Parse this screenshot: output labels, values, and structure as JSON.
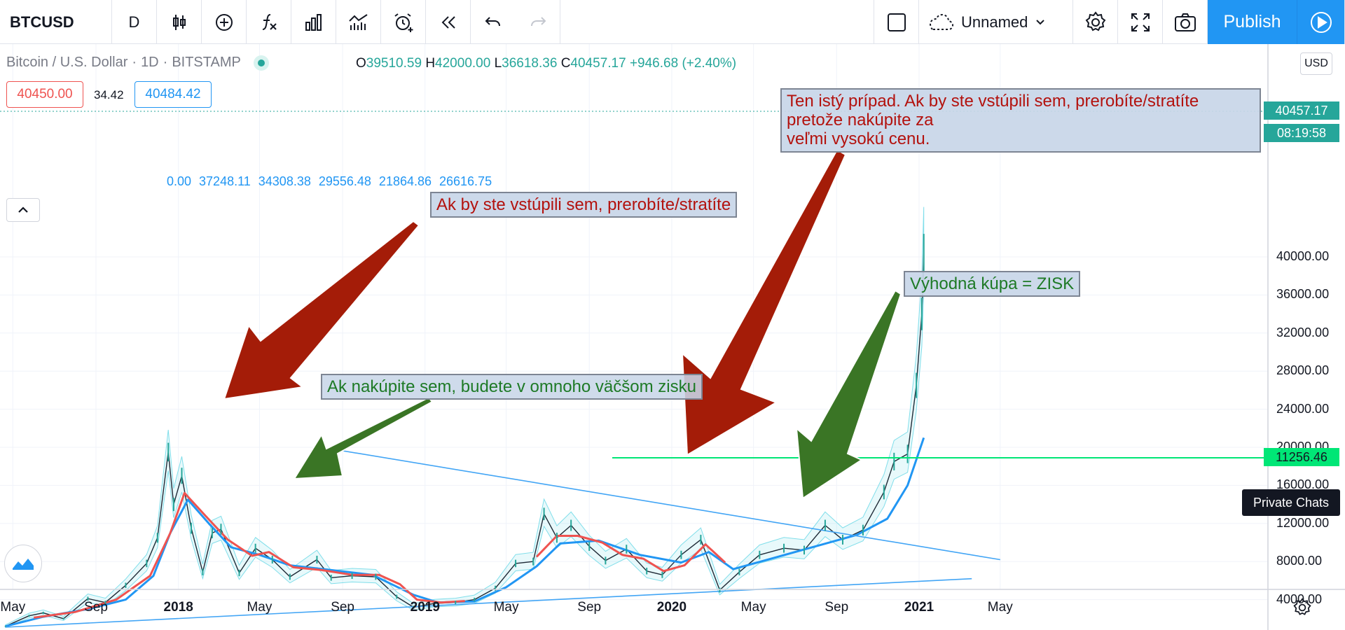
{
  "toolbar": {
    "symbol": "BTCUSD",
    "interval": "D",
    "layout_name": "Unnamed",
    "publish_label": "Publish"
  },
  "legend": {
    "title": "Bitcoin / U.S. Dollar",
    "interval": "1D",
    "exchange": "BITSTAMP",
    "open_key": "O",
    "open": "39510.59",
    "high_key": "H",
    "high": "42000.00",
    "low_key": "L",
    "low": "36618.36",
    "close_key": "C",
    "close": "40457.17",
    "change": "+946.68 (+2.40%)",
    "bid": "40450.00",
    "spread": "34.42",
    "ask": "40484.42",
    "indicator_values": "0.00  37248.11  34308.38  29556.48  21864.86  26616.75"
  },
  "price_axis": {
    "currency": "USD",
    "last_price": "40457.17",
    "countdown": "08:19:58",
    "level_label": "11256.46"
  },
  "notes": {
    "top": "Ten istý prípad. Ak by ste vstúpili sem, prerobíte/stratíte\npretože nakúpite za\nveľmi vysokú cenu.",
    "mid": "Ak by ste vstúpili sem, prerobíte/stratíte",
    "green_big": "Ak nakúpite sem, budete v omnoho väčšom zisku",
    "zisk": "Výhodná kúpa = ZISK"
  },
  "private_chats": "Private Chats",
  "colors": {
    "accent": "#2196f3",
    "up": "#26a69a",
    "down": "#ef5350",
    "red_arrow": "#a41c08",
    "green_arrow": "#3a7525",
    "level_line": "#00e676"
  },
  "chart_data": {
    "type": "line",
    "symbol": "BTCUSD",
    "yticks": [
      "4000.00",
      "8000.00",
      "12000.00",
      "16000.00",
      "20000.00",
      "24000.00",
      "28000.00",
      "32000.00",
      "36000.00",
      "40000.00"
    ],
    "xticks": [
      "May",
      "Sep",
      "2018",
      "May",
      "Sep",
      "2019",
      "May",
      "Sep",
      "2020",
      "May",
      "Sep",
      "2021",
      "May"
    ],
    "ylim": [
      1000,
      44000
    ],
    "series": [
      {
        "values": [
          [
            "2017-04-20",
            1200
          ],
          [
            "2017-05-25",
            2300
          ],
          [
            "2017-06-15",
            2600
          ],
          [
            "2017-07-15",
            2000
          ],
          [
            "2017-08-20",
            4100
          ],
          [
            "2017-09-15",
            3700
          ],
          [
            "2017-10-15",
            5500
          ],
          [
            "2017-11-15",
            7800
          ],
          [
            "2017-12-01",
            10500
          ],
          [
            "2017-12-17",
            19500
          ],
          [
            "2017-12-25",
            14000
          ],
          [
            "2018-01-06",
            17000
          ],
          [
            "2018-01-20",
            11500
          ],
          [
            "2018-02-06",
            6900
          ],
          [
            "2018-02-20",
            11000
          ],
          [
            "2018-03-05",
            11400
          ],
          [
            "2018-04-01",
            6800
          ],
          [
            "2018-04-25",
            9400
          ],
          [
            "2018-05-20",
            8200
          ],
          [
            "2018-06-15",
            6400
          ],
          [
            "2018-07-25",
            8200
          ],
          [
            "2018-08-15",
            6300
          ],
          [
            "2018-09-15",
            6500
          ],
          [
            "2018-10-20",
            6400
          ],
          [
            "2018-11-20",
            4300
          ],
          [
            "2018-12-15",
            3200
          ],
          [
            "2019-01-15",
            3600
          ],
          [
            "2019-02-15",
            3700
          ],
          [
            "2019-03-15",
            4000
          ],
          [
            "2019-04-15",
            5200
          ],
          [
            "2019-05-15",
            7800
          ],
          [
            "2019-06-10",
            8000
          ],
          [
            "2019-06-26",
            13000
          ],
          [
            "2019-07-15",
            10500
          ],
          [
            "2019-08-05",
            11800
          ],
          [
            "2019-09-01",
            9600
          ],
          [
            "2019-09-25",
            8100
          ],
          [
            "2019-10-26",
            9300
          ],
          [
            "2019-11-25",
            7000
          ],
          [
            "2019-12-18",
            6600
          ],
          [
            "2020-01-15",
            8700
          ],
          [
            "2020-02-13",
            10300
          ],
          [
            "2020-03-12",
            5000
          ],
          [
            "2020-04-10",
            6900
          ],
          [
            "2020-05-10",
            8700
          ],
          [
            "2020-06-15",
            9400
          ],
          [
            "2020-07-15",
            9200
          ],
          [
            "2020-08-15",
            11800
          ],
          [
            "2020-09-10",
            10300
          ],
          [
            "2020-10-10",
            11300
          ],
          [
            "2020-11-10",
            15300
          ],
          [
            "2020-11-25",
            18500
          ],
          [
            "2020-12-15",
            19300
          ],
          [
            "2020-12-28",
            26500
          ],
          [
            "2021-01-05",
            34000
          ],
          [
            "2021-01-08",
            40400
          ]
        ]
      },
      {
        "values": [
          [
            "2017-04-20",
            1200
          ],
          [
            "2017-06-15",
            2200
          ],
          [
            "2017-08-20",
            3000
          ],
          [
            "2017-10-15",
            4000
          ],
          [
            "2017-11-25",
            6500
          ],
          [
            "2017-12-20",
            11000
          ],
          [
            "2018-01-15",
            14500
          ],
          [
            "2018-02-15",
            12000
          ],
          [
            "2018-03-20",
            9500
          ],
          [
            "2018-05-01",
            8700
          ],
          [
            "2018-06-15",
            7600
          ],
          [
            "2018-08-15",
            7100
          ],
          [
            "2018-10-15",
            6600
          ],
          [
            "2018-12-15",
            4500
          ],
          [
            "2019-01-20",
            3700
          ],
          [
            "2019-03-15",
            3800
          ],
          [
            "2019-05-01",
            5300
          ],
          [
            "2019-06-15",
            7500
          ],
          [
            "2019-07-20",
            9900
          ],
          [
            "2019-09-15",
            10200
          ],
          [
            "2019-11-15",
            8700
          ],
          [
            "2020-01-15",
            7900
          ],
          [
            "2020-02-25",
            9000
          ],
          [
            "2020-04-01",
            7200
          ],
          [
            "2020-06-01",
            8400
          ],
          [
            "2020-08-01",
            9600
          ],
          [
            "2020-10-01",
            10800
          ],
          [
            "2020-11-15",
            12500
          ],
          [
            "2020-12-15",
            16000
          ],
          [
            "2021-01-08",
            21000
          ]
        ]
      },
      {
        "values": [
          [
            "2017-06-01",
            2100
          ],
          [
            "2017-08-01",
            2700
          ],
          [
            "2017-10-01",
            4000
          ],
          [
            "2017-11-20",
            6500
          ],
          [
            "2017-12-20",
            11000
          ],
          [
            "2018-01-10",
            15200
          ],
          [
            "2018-02-10",
            12800
          ],
          [
            "2018-03-15",
            10300
          ],
          [
            "2018-04-20",
            8600
          ],
          [
            "2018-05-15",
            9000
          ],
          [
            "2018-06-20",
            7400
          ],
          [
            "2018-08-01",
            7100
          ],
          [
            "2018-09-15",
            6600
          ],
          [
            "2018-10-25",
            6600
          ],
          [
            "2018-11-25",
            5600
          ],
          [
            "2018-12-20",
            4000
          ],
          [
            "2019-01-25",
            3700
          ],
          [
            "2019-03-01",
            3850
          ]
        ]
      },
      {
        "values": [
          [
            "2019-06-15",
            8500
          ],
          [
            "2019-07-15",
            10700
          ],
          [
            "2019-08-15",
            10700
          ],
          [
            "2019-09-20",
            10000
          ],
          [
            "2019-10-20",
            8700
          ],
          [
            "2019-11-20",
            8300
          ],
          [
            "2019-12-20",
            7000
          ],
          [
            "2020-01-20",
            7600
          ],
          [
            "2020-02-20",
            9800
          ],
          [
            "2020-03-20",
            7900
          ]
        ]
      },
      {
        "values": [
          [
            "2018-08-01",
            20000
          ],
          [
            "2021-05-01",
            8200
          ]
        ]
      },
      {
        "values": [
          [
            "2017-04-20",
            1100
          ],
          [
            "2021-03-20",
            6200
          ]
        ]
      }
    ]
  }
}
